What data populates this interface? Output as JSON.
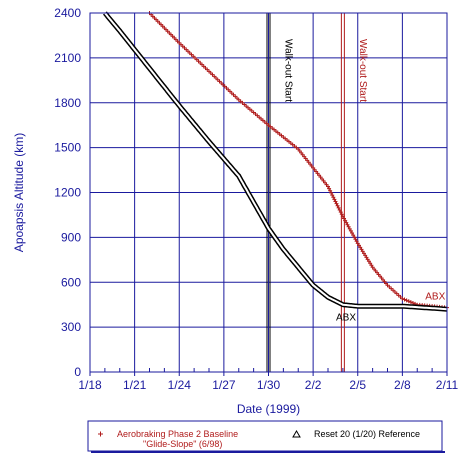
{
  "chart_data": {
    "type": "scatter",
    "title": "",
    "xlabel": "Date (1999)",
    "ylabel": "Apoapsis Altitude (km)",
    "x_start": "1/18",
    "x_end": "2/11",
    "ylim": [
      0,
      2400
    ],
    "x_tick_labels": [
      "1/18",
      "1/21",
      "1/24",
      "1/27",
      "1/30",
      "2/2",
      "2/5",
      "2/8",
      "2/11"
    ],
    "y_tick_labels": [
      "0",
      "300",
      "600",
      "900",
      "1200",
      "1500",
      "1800",
      "2100",
      "2400"
    ],
    "grid": true,
    "legend_position": "bottom",
    "colors": {
      "axis_text": "#1a1a9e",
      "grid": "#1a1a9e",
      "baseline": "#b01c1c",
      "reference": "#000000"
    },
    "series": [
      {
        "name": "Aerobraking Phase 2 Baseline\n\"Glide-Slope\" (6/98)",
        "legend_line1": "Aerobraking Phase 2 Baseline",
        "legend_line2": "\"Glide-Slope\" (6/98)",
        "marker": "plus",
        "color": "#b01c1c",
        "points": [
          {
            "x": "1/22",
            "y": 2400
          },
          {
            "x": "1/24",
            "y": 2200
          },
          {
            "x": "1/26",
            "y": 2010
          },
          {
            "x": "1/28",
            "y": 1820
          },
          {
            "x": "1/30",
            "y": 1650
          },
          {
            "x": "2/1",
            "y": 1490
          },
          {
            "x": "2/3",
            "y": 1240
          },
          {
            "x": "2/4",
            "y": 1040
          },
          {
            "x": "2/5",
            "y": 860
          },
          {
            "x": "2/6",
            "y": 700
          },
          {
            "x": "2/7",
            "y": 580
          },
          {
            "x": "2/8",
            "y": 490
          },
          {
            "x": "2/9",
            "y": 450
          },
          {
            "x": "2/11",
            "y": 430
          }
        ]
      },
      {
        "name": "Reset 20 (1/20) Reference",
        "marker": "triangle",
        "color": "#000000",
        "points": [
          {
            "x": "1/19",
            "y": 2400
          },
          {
            "x": "1/20",
            "y": 2280
          },
          {
            "x": "1/22",
            "y": 2030
          },
          {
            "x": "1/24",
            "y": 1780
          },
          {
            "x": "1/26",
            "y": 1540
          },
          {
            "x": "1/28",
            "y": 1310
          },
          {
            "x": "1/30",
            "y": 960
          },
          {
            "x": "1/31",
            "y": 820
          },
          {
            "x": "2/1",
            "y": 700
          },
          {
            "x": "2/2",
            "y": 580
          },
          {
            "x": "2/3",
            "y": 500
          },
          {
            "x": "2/4",
            "y": 450
          },
          {
            "x": "2/5",
            "y": 440
          },
          {
            "x": "2/8",
            "y": 440
          },
          {
            "x": "2/11",
            "y": 420
          }
        ]
      }
    ],
    "vertical_lines": [
      {
        "x": "1/30",
        "label": "Walk-out Start",
        "color": "#000000"
      },
      {
        "x": "2/4",
        "label": "Walk-out Start",
        "color": "#b01c1c"
      }
    ],
    "annotations": [
      {
        "text": "ABX",
        "x": "2/9",
        "y": 510,
        "color": "#b01c1c"
      },
      {
        "text": "ABX",
        "x": "2/3",
        "y": 370,
        "color": "#000000"
      }
    ]
  }
}
